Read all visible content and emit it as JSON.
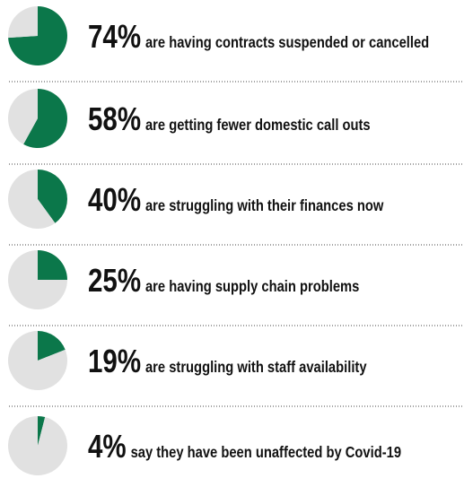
{
  "chart_data": [
    {
      "type": "pie",
      "title": "are having contracts suspended or cancelled",
      "values": [
        74,
        26
      ],
      "value_labels": [
        "74%",
        null
      ],
      "colors": [
        "#0b774a",
        "#e1e1e1"
      ]
    },
    {
      "type": "pie",
      "title": "are getting fewer domestic call outs",
      "values": [
        58,
        42
      ],
      "value_labels": [
        "58%",
        null
      ],
      "colors": [
        "#0b774a",
        "#e1e1e1"
      ]
    },
    {
      "type": "pie",
      "title": "are struggling with their finances now",
      "values": [
        40,
        60
      ],
      "value_labels": [
        "40%",
        null
      ],
      "colors": [
        "#0b774a",
        "#e1e1e1"
      ]
    },
    {
      "type": "pie",
      "title": "are having supply chain problems",
      "values": [
        25,
        75
      ],
      "value_labels": [
        "25%",
        null
      ],
      "colors": [
        "#0b774a",
        "#e1e1e1"
      ]
    },
    {
      "type": "pie",
      "title": "are struggling with staff availability",
      "values": [
        19,
        81
      ],
      "value_labels": [
        "19%",
        null
      ],
      "colors": [
        "#0b774a",
        "#e1e1e1"
      ]
    },
    {
      "type": "pie",
      "title": "say they have been unaffected by Covid-19",
      "values": [
        4,
        96
      ],
      "value_labels": [
        "4%",
        null
      ],
      "colors": [
        "#0b774a",
        "#e1e1e1"
      ]
    }
  ]
}
